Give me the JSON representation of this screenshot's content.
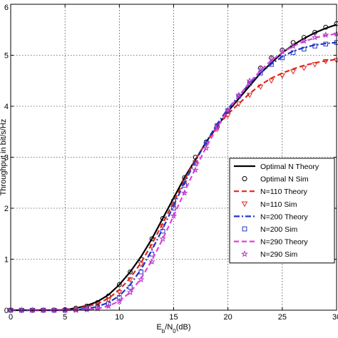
{
  "chart_data": {
    "type": "line",
    "xlabel_main": "E",
    "xlabel_sub1": "b",
    "xlabel_mid": "/N",
    "xlabel_sub2": "0",
    "xlabel_tail": "(dB)",
    "ylabel": "Throughput in bit/s/Hz",
    "xlim": [
      0,
      30
    ],
    "ylim": [
      0,
      6
    ],
    "xticks": [
      0,
      5,
      10,
      15,
      20,
      25,
      30
    ],
    "yticks": [
      0,
      1,
      2,
      3,
      4,
      5,
      6
    ],
    "grid": true,
    "legend_position": "right",
    "series": [
      {
        "name": "Optimal N Theory",
        "kind": "line",
        "color": "#000000",
        "dash": "solid",
        "x": [
          0,
          2,
          4,
          5,
          6,
          7,
          8,
          9,
          10,
          11,
          12,
          13,
          14,
          15,
          16,
          17,
          18,
          19,
          20,
          21,
          22,
          23,
          24,
          25,
          26,
          27,
          28,
          29,
          30
        ],
        "y": [
          0,
          0,
          0,
          0.01,
          0.04,
          0.09,
          0.17,
          0.3,
          0.5,
          0.75,
          1.05,
          1.4,
          1.8,
          2.2,
          2.6,
          2.95,
          3.3,
          3.6,
          3.9,
          4.15,
          4.4,
          4.65,
          4.85,
          5.05,
          5.2,
          5.33,
          5.44,
          5.53,
          5.6
        ]
      },
      {
        "name": "Optimal N Sim",
        "kind": "marker",
        "marker": "circle",
        "color": "#000000",
        "x": [
          0,
          1,
          2,
          3,
          4,
          5,
          6,
          7,
          8,
          9,
          10,
          11,
          12,
          13,
          14,
          15,
          16,
          17,
          18,
          19,
          20,
          21,
          22,
          23,
          24,
          25,
          26,
          27,
          28,
          29,
          30
        ],
        "y": [
          0,
          0,
          0,
          0,
          0,
          0.01,
          0.04,
          0.08,
          0.15,
          0.28,
          0.5,
          0.75,
          1.0,
          1.4,
          1.8,
          2.15,
          2.6,
          3.0,
          3.3,
          3.6,
          3.9,
          4.2,
          4.45,
          4.75,
          4.95,
          5.1,
          5.25,
          5.35,
          5.45,
          5.55,
          5.62
        ]
      },
      {
        "name": "N=110 Theory",
        "kind": "line",
        "color": "#e0261f",
        "dash": "dashed",
        "x": [
          0,
          2,
          4,
          5,
          6,
          7,
          8,
          9,
          10,
          11,
          12,
          13,
          14,
          15,
          16,
          17,
          18,
          19,
          20,
          21,
          22,
          23,
          24,
          25,
          26,
          27,
          28,
          29,
          30
        ],
        "y": [
          0,
          0,
          0,
          0.01,
          0.03,
          0.07,
          0.13,
          0.23,
          0.4,
          0.63,
          0.93,
          1.3,
          1.7,
          2.12,
          2.55,
          2.95,
          3.3,
          3.6,
          3.85,
          4.05,
          4.25,
          4.42,
          4.55,
          4.65,
          4.73,
          4.8,
          4.85,
          4.89,
          4.92
        ]
      },
      {
        "name": "N=110 Sim",
        "kind": "marker",
        "marker": "triangle-down",
        "color": "#e0261f",
        "x": [
          0,
          1,
          2,
          3,
          4,
          5,
          6,
          7,
          8,
          9,
          10,
          11,
          12,
          13,
          14,
          15,
          16,
          17,
          18,
          19,
          20,
          21,
          22,
          23,
          24,
          25,
          26,
          27,
          28,
          29,
          30
        ],
        "y": [
          0,
          0,
          0,
          0,
          0,
          0,
          0.02,
          0.05,
          0.1,
          0.2,
          0.35,
          0.6,
          0.9,
          1.25,
          1.65,
          2.05,
          2.5,
          2.9,
          3.25,
          3.55,
          3.82,
          4.05,
          4.22,
          4.38,
          4.5,
          4.6,
          4.68,
          4.75,
          4.82,
          4.88,
          4.9
        ]
      },
      {
        "name": "N=200 Theory",
        "kind": "line",
        "color": "#1f35c9",
        "dash": "dashdot",
        "x": [
          0,
          2,
          4,
          5,
          6,
          7,
          8,
          9,
          10,
          11,
          12,
          13,
          14,
          15,
          16,
          17,
          18,
          19,
          20,
          21,
          22,
          23,
          24,
          25,
          26,
          27,
          28,
          29,
          30
        ],
        "y": [
          0,
          0,
          0,
          0,
          0.01,
          0.03,
          0.07,
          0.15,
          0.28,
          0.5,
          0.8,
          1.18,
          1.6,
          2.05,
          2.5,
          2.92,
          3.3,
          3.65,
          3.95,
          4.2,
          4.45,
          4.65,
          4.83,
          4.97,
          5.08,
          5.15,
          5.2,
          5.23,
          5.25
        ]
      },
      {
        "name": "N=200 Sim",
        "kind": "marker",
        "marker": "square",
        "color": "#1f35c9",
        "x": [
          0,
          1,
          2,
          3,
          4,
          5,
          6,
          7,
          8,
          9,
          10,
          11,
          12,
          13,
          14,
          15,
          16,
          17,
          18,
          19,
          20,
          21,
          22,
          23,
          24,
          25,
          26,
          27,
          28,
          29,
          30
        ],
        "y": [
          0,
          0,
          0,
          0,
          0,
          0,
          0.01,
          0.03,
          0.06,
          0.13,
          0.25,
          0.45,
          0.75,
          1.1,
          1.55,
          2.0,
          2.45,
          2.88,
          3.28,
          3.62,
          3.92,
          4.2,
          4.45,
          4.65,
          4.82,
          4.95,
          5.05,
          5.12,
          5.18,
          5.22,
          5.25
        ]
      },
      {
        "name": "N=290 Theory",
        "kind": "line",
        "color": "#e23fe0",
        "dash": "dashed",
        "x": [
          0,
          2,
          4,
          5,
          6,
          7,
          8,
          9,
          10,
          11,
          12,
          13,
          14,
          15,
          16,
          17,
          18,
          19,
          20,
          21,
          22,
          23,
          24,
          25,
          26,
          27,
          28,
          29,
          30
        ],
        "y": [
          0,
          0,
          0,
          0,
          0,
          0.01,
          0.03,
          0.08,
          0.18,
          0.35,
          0.62,
          0.98,
          1.4,
          1.85,
          2.32,
          2.78,
          3.2,
          3.58,
          3.92,
          4.2,
          4.47,
          4.7,
          4.9,
          5.05,
          5.18,
          5.27,
          5.34,
          5.39,
          5.42
        ]
      },
      {
        "name": "N=290 Sim",
        "kind": "marker",
        "marker": "star",
        "color": "#b03ac0",
        "x": [
          0,
          1,
          2,
          3,
          4,
          5,
          6,
          7,
          8,
          9,
          10,
          11,
          12,
          13,
          14,
          15,
          16,
          17,
          18,
          19,
          20,
          21,
          22,
          23,
          24,
          25,
          26,
          27,
          28,
          29,
          30
        ],
        "y": [
          0,
          0,
          0,
          0,
          0,
          0,
          0,
          0.01,
          0.03,
          0.08,
          0.17,
          0.35,
          0.6,
          0.95,
          1.4,
          1.85,
          2.3,
          2.75,
          3.18,
          3.58,
          3.92,
          4.22,
          4.5,
          4.72,
          4.92,
          5.07,
          5.18,
          5.28,
          5.35,
          5.4,
          5.42
        ]
      }
    ]
  }
}
